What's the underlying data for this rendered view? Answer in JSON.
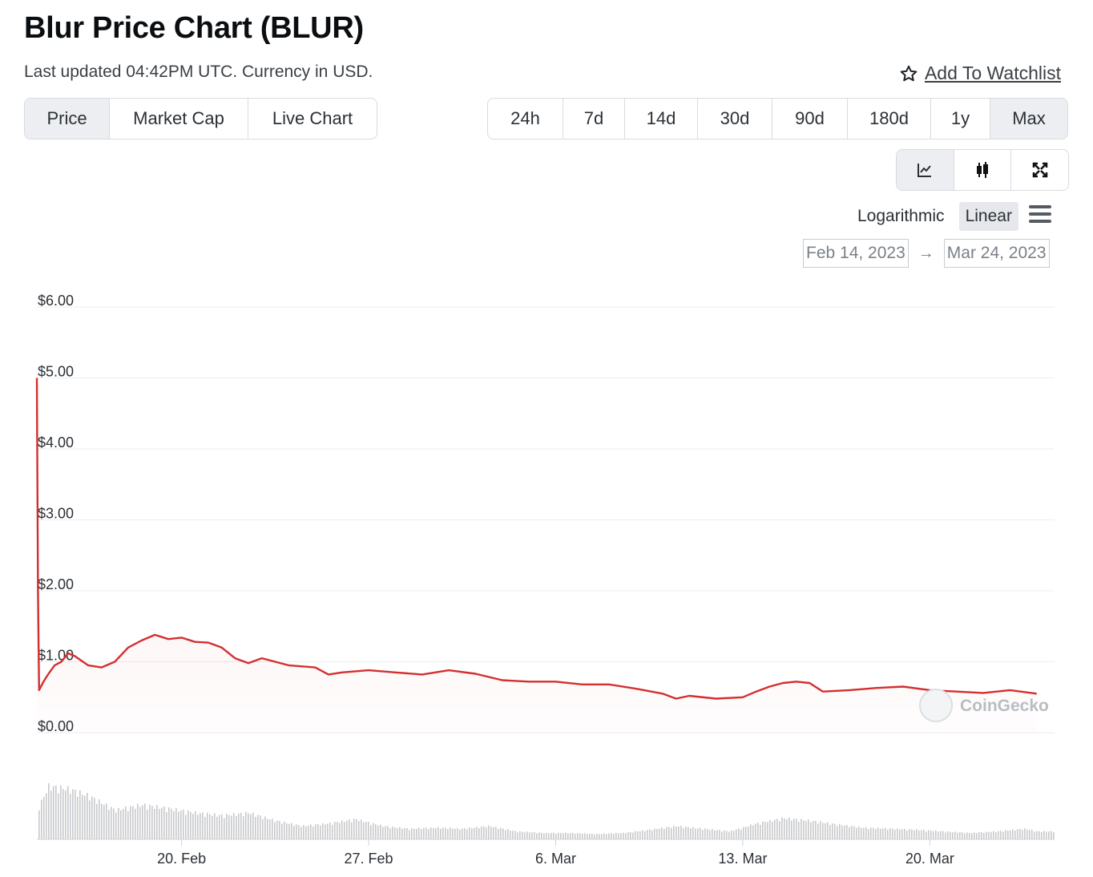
{
  "header": {
    "title": "Blur Price Chart (BLUR)",
    "subtitle": "Last updated 04:42PM UTC. Currency in USD.",
    "watchlist_label": "Add To Watchlist"
  },
  "metric_tabs": [
    {
      "label": "Price",
      "active": true
    },
    {
      "label": "Market Cap",
      "active": false
    },
    {
      "label": "Live Chart",
      "active": false
    }
  ],
  "range_tabs": [
    {
      "label": "24h",
      "active": false
    },
    {
      "label": "7d",
      "active": false
    },
    {
      "label": "14d",
      "active": false
    },
    {
      "label": "30d",
      "active": false
    },
    {
      "label": "90d",
      "active": false
    },
    {
      "label": "180d",
      "active": false
    },
    {
      "label": "1y",
      "active": false
    },
    {
      "label": "Max",
      "active": true
    }
  ],
  "view_buttons": [
    {
      "icon": "line-chart-icon",
      "active": true
    },
    {
      "icon": "candlestick-icon",
      "active": false
    },
    {
      "icon": "fullscreen-icon",
      "active": false
    }
  ],
  "scale": {
    "logarithmic": "Logarithmic",
    "linear": "Linear",
    "active": "Linear"
  },
  "date_range": {
    "from": "Feb 14, 2023",
    "arrow": "→",
    "to": "Mar 24, 2023"
  },
  "watermark": "CoinGecko",
  "colors": {
    "line": "#d32f2f",
    "volume": "#c7c9cc",
    "grid": "#eceef0",
    "active_bg": "#eceef1"
  },
  "chart_data": {
    "type": "line",
    "series": [
      {
        "values": [
          [
            "2023-02-14T14:00",
            5.0
          ],
          [
            "2023-02-14T15:00",
            2.0
          ],
          [
            "2023-02-14T16:00",
            0.6
          ],
          [
            "2023-02-14T20:00",
            0.72
          ],
          [
            "2023-02-15T00:00",
            0.82
          ],
          [
            "2023-02-15T06:00",
            0.95
          ],
          [
            "2023-02-15T12:00",
            1.0
          ],
          [
            "2023-02-15T18:00",
            1.12
          ],
          [
            "2023-02-16T00:00",
            1.08
          ],
          [
            "2023-02-16T12:00",
            0.95
          ],
          [
            "2023-02-17T00:00",
            0.92
          ],
          [
            "2023-02-17T12:00",
            1.0
          ],
          [
            "2023-02-18T00:00",
            1.2
          ],
          [
            "2023-02-18T12:00",
            1.3
          ],
          [
            "2023-02-19T00:00",
            1.38
          ],
          [
            "2023-02-19T12:00",
            1.32
          ],
          [
            "2023-02-20T00:00",
            1.34
          ],
          [
            "2023-02-20T12:00",
            1.28
          ],
          [
            "2023-02-21T00:00",
            1.27
          ],
          [
            "2023-02-21T12:00",
            1.2
          ],
          [
            "2023-02-22T00:00",
            1.05
          ],
          [
            "2023-02-22T12:00",
            0.98
          ],
          [
            "2023-02-23T00:00",
            1.05
          ],
          [
            "2023-02-23T12:00",
            1.0
          ],
          [
            "2023-02-24T00:00",
            0.95
          ],
          [
            "2023-02-25T00:00",
            0.92
          ],
          [
            "2023-02-25T12:00",
            0.82
          ],
          [
            "2023-02-26T00:00",
            0.85
          ],
          [
            "2023-02-27T00:00",
            0.88
          ],
          [
            "2023-02-28T00:00",
            0.85
          ],
          [
            "2023-03-01T00:00",
            0.82
          ],
          [
            "2023-03-02T00:00",
            0.88
          ],
          [
            "2023-03-03T00:00",
            0.83
          ],
          [
            "2023-03-04T00:00",
            0.74
          ],
          [
            "2023-03-05T00:00",
            0.72
          ],
          [
            "2023-03-06T00:00",
            0.72
          ],
          [
            "2023-03-07T00:00",
            0.68
          ],
          [
            "2023-03-08T00:00",
            0.68
          ],
          [
            "2023-03-09T00:00",
            0.62
          ],
          [
            "2023-03-10T00:00",
            0.55
          ],
          [
            "2023-03-10T12:00",
            0.48
          ],
          [
            "2023-03-11T00:00",
            0.52
          ],
          [
            "2023-03-12T00:00",
            0.48
          ],
          [
            "2023-03-13T00:00",
            0.5
          ],
          [
            "2023-03-13T12:00",
            0.58
          ],
          [
            "2023-03-14T00:00",
            0.65
          ],
          [
            "2023-03-14T12:00",
            0.7
          ],
          [
            "2023-03-15T00:00",
            0.72
          ],
          [
            "2023-03-15T12:00",
            0.7
          ],
          [
            "2023-03-16T00:00",
            0.58
          ],
          [
            "2023-03-17T00:00",
            0.6
          ],
          [
            "2023-03-18T00:00",
            0.63
          ],
          [
            "2023-03-19T00:00",
            0.65
          ],
          [
            "2023-03-20T00:00",
            0.6
          ],
          [
            "2023-03-21T00:00",
            0.58
          ],
          [
            "2023-03-22T00:00",
            0.56
          ],
          [
            "2023-03-23T00:00",
            0.6
          ],
          [
            "2023-03-24T00:00",
            0.55
          ]
        ]
      }
    ],
    "volume": [
      [
        "2023-02-14T14:00",
        0.55
      ],
      [
        "2023-02-15T00:00",
        1.0
      ],
      [
        "2023-02-15T18:00",
        0.95
      ],
      [
        "2023-02-16T12:00",
        0.82
      ],
      [
        "2023-02-17T12:00",
        0.55
      ],
      [
        "2023-02-18T12:00",
        0.65
      ],
      [
        "2023-02-19T12:00",
        0.58
      ],
      [
        "2023-02-20T12:00",
        0.5
      ],
      [
        "2023-02-21T12:00",
        0.45
      ],
      [
        "2023-02-22T12:00",
        0.5
      ],
      [
        "2023-02-23T12:00",
        0.35
      ],
      [
        "2023-02-24T12:00",
        0.25
      ],
      [
        "2023-02-25T12:00",
        0.3
      ],
      [
        "2023-02-26T12:00",
        0.38
      ],
      [
        "2023-02-27T12:00",
        0.25
      ],
      [
        "2023-02-28T12:00",
        0.2
      ],
      [
        "2023-03-01T12:00",
        0.22
      ],
      [
        "2023-03-02T12:00",
        0.2
      ],
      [
        "2023-03-03T12:00",
        0.25
      ],
      [
        "2023-03-04T12:00",
        0.15
      ],
      [
        "2023-03-05T12:00",
        0.12
      ],
      [
        "2023-03-06T12:00",
        0.12
      ],
      [
        "2023-03-07T12:00",
        0.1
      ],
      [
        "2023-03-08T12:00",
        0.12
      ],
      [
        "2023-03-09T12:00",
        0.18
      ],
      [
        "2023-03-10T12:00",
        0.25
      ],
      [
        "2023-03-11T12:00",
        0.2
      ],
      [
        "2023-03-12T12:00",
        0.15
      ],
      [
        "2023-03-13T12:00",
        0.3
      ],
      [
        "2023-03-14T12:00",
        0.4
      ],
      [
        "2023-03-15T12:00",
        0.35
      ],
      [
        "2023-03-16T12:00",
        0.28
      ],
      [
        "2023-03-17T12:00",
        0.22
      ],
      [
        "2023-03-18T12:00",
        0.2
      ],
      [
        "2023-03-19T12:00",
        0.18
      ],
      [
        "2023-03-20T12:00",
        0.15
      ],
      [
        "2023-03-21T12:00",
        0.12
      ],
      [
        "2023-03-22T12:00",
        0.15
      ],
      [
        "2023-03-23T12:00",
        0.2
      ],
      [
        "2023-03-24T00:00",
        0.15
      ]
    ],
    "x_ticks": [
      {
        "label": "20. Feb",
        "date": "2023-02-20T00:00"
      },
      {
        "label": "27. Feb",
        "date": "2023-02-27T00:00"
      },
      {
        "label": "6. Mar",
        "date": "2023-03-06T00:00"
      },
      {
        "label": "13. Mar",
        "date": "2023-03-13T00:00"
      },
      {
        "label": "20. Mar",
        "date": "2023-03-20T00:00"
      }
    ],
    "y_ticks": [
      {
        "label": "$6.00",
        "value": 6
      },
      {
        "label": "$5.00",
        "value": 5
      },
      {
        "label": "$4.00",
        "value": 4
      },
      {
        "label": "$3.00",
        "value": 3
      },
      {
        "label": "$2.00",
        "value": 2
      },
      {
        "label": "$1.00",
        "value": 1
      },
      {
        "label": "$0.00",
        "value": 0
      }
    ],
    "xlim": [
      "2023-02-14T14:00",
      "2023-03-24T16:00"
    ],
    "ylim": [
      0,
      6
    ],
    "grid": true,
    "legend": "none"
  }
}
